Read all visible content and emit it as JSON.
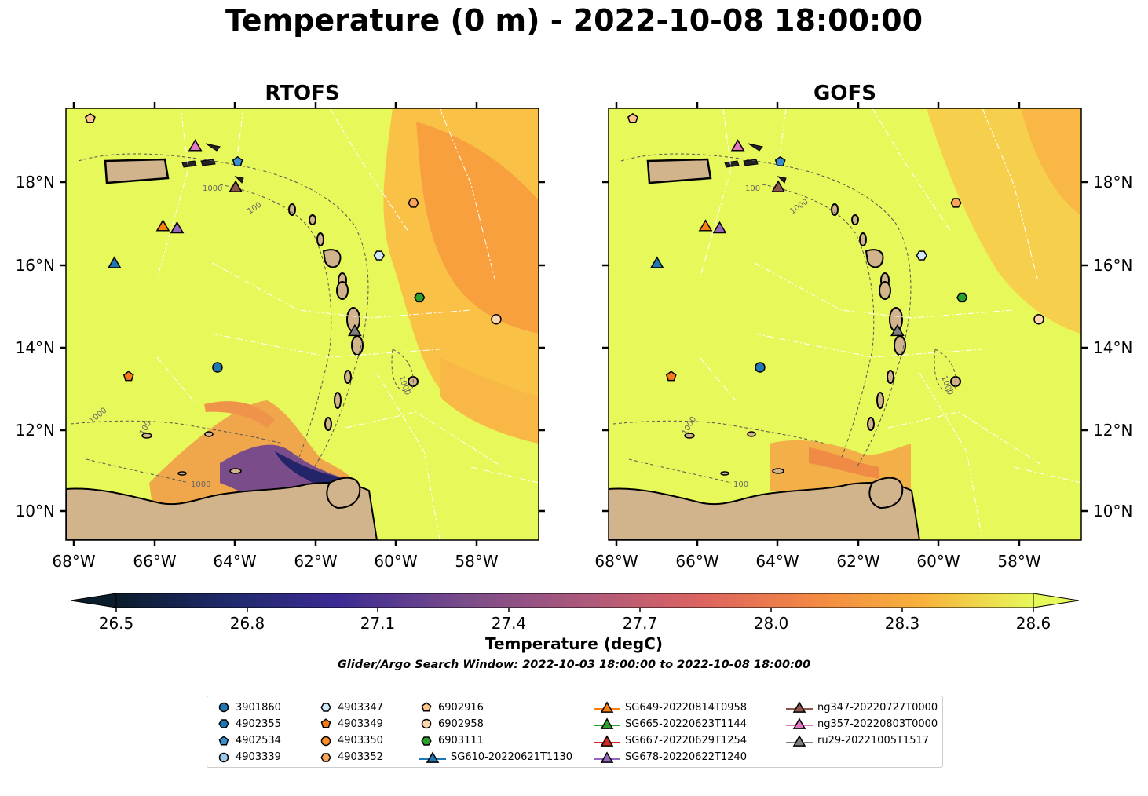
{
  "title": "Temperature (0 m) - 2022-10-08 18:00:00",
  "panels": [
    {
      "title": "RTOFS",
      "model": "rtofs"
    },
    {
      "title": "GOFS",
      "model": "gofs"
    }
  ],
  "axes": {
    "lon_ticks": [
      "68°W",
      "66°W",
      "64°W",
      "62°W",
      "60°W",
      "58°W"
    ],
    "lat_ticks": [
      "18°N",
      "16°N",
      "14°N",
      "12°N",
      "10°N"
    ],
    "lon_range": [
      -68.2,
      -56.5
    ],
    "lat_range": [
      9.3,
      19.8
    ]
  },
  "contour_labels": [
    "1000",
    "100",
    "100",
    "1000",
    "1000",
    "1000",
    "100",
    "1000",
    "1000",
    "100",
    "1000"
  ],
  "colorbar": {
    "label": "Temperature (degC)",
    "ticks": [
      "26.5",
      "26.8",
      "27.1",
      "27.4",
      "27.7",
      "28.0",
      "28.3",
      "28.6"
    ],
    "range": [
      26.5,
      28.6
    ],
    "extend": "both"
  },
  "search_window": "Glider/Argo Search Window: 2022-10-03 18:00:00 to 2022-10-08 18:00:00",
  "colors": {
    "land": "#d2b48c",
    "ocean_warm": "#e7f85a",
    "ocean_hot": "#f89a3e",
    "ocean_cold": "#23246a"
  },
  "legend": [
    {
      "label": "3901860",
      "marker": "circle",
      "color": "#1f77b4"
    },
    {
      "label": "4902355",
      "marker": "hexagon",
      "color": "#1f77b4"
    },
    {
      "label": "4902534",
      "marker": "pentagon",
      "color": "#3a8fd0"
    },
    {
      "label": "4903339",
      "marker": "circle",
      "color": "#9ec9ea"
    },
    {
      "label": "4903347",
      "marker": "hexagon",
      "color": "#cfe8fa"
    },
    {
      "label": "4903349",
      "marker": "pentagon",
      "color": "#f47b16"
    },
    {
      "label": "4903350",
      "marker": "circle",
      "color": "#ff8c2a"
    },
    {
      "label": "4903352",
      "marker": "hexagon",
      "color": "#fba45a"
    },
    {
      "label": "6902916",
      "marker": "pentagon",
      "color": "#ffc48a"
    },
    {
      "label": "6902958",
      "marker": "circle",
      "color": "#ffd6ae"
    },
    {
      "label": "6903111",
      "marker": "hexagon",
      "color": "#2ca02c"
    },
    {
      "label": "SG610-20220621T1130",
      "marker": "triangle-line",
      "color": "#1f77b4"
    },
    {
      "label": "SG649-20220814T0958",
      "marker": "triangle-line",
      "color": "#ff7f0e"
    },
    {
      "label": "SG665-20220623T1144",
      "marker": "triangle-line",
      "color": "#2ca02c"
    },
    {
      "label": "SG667-20220629T1254",
      "marker": "triangle-line",
      "color": "#d62728"
    },
    {
      "label": "SG678-20220622T1240",
      "marker": "triangle-line",
      "color": "#9467bd"
    },
    {
      "label": "ng347-20220727T0000",
      "marker": "triangle-line",
      "color": "#8c564b"
    },
    {
      "label": "ng357-20220803T0000",
      "marker": "triangle-line",
      "color": "#e377c2"
    },
    {
      "label": "ru29-20221005T1517",
      "marker": "triangle-line",
      "color": "#7f7f7f"
    }
  ],
  "platforms": [
    {
      "id": "6902916",
      "lon": -67.6,
      "lat": 19.55
    },
    {
      "id": "ng357-20220803T0000",
      "lon": -65.0,
      "lat": 18.9
    },
    {
      "id": "4902534",
      "lon": -63.95,
      "lat": 18.5
    },
    {
      "id": "ng347-20220727T0000",
      "lon": -64.0,
      "lat": 17.9
    },
    {
      "id": "4903352",
      "lon": -59.6,
      "lat": 17.5
    },
    {
      "id": "SG649-20220814T0958",
      "lon": -65.8,
      "lat": 16.95
    },
    {
      "id": "SG678-20220622T1240",
      "lon": -65.45,
      "lat": 16.9
    },
    {
      "id": "SG610-20220621T1130",
      "lon": -67.0,
      "lat": 16.05
    },
    {
      "id": "4903347",
      "lon": -60.45,
      "lat": 16.22
    },
    {
      "id": "6903111",
      "lon": -59.45,
      "lat": 15.2
    },
    {
      "id": "6902958",
      "lon": -57.55,
      "lat": 14.67
    },
    {
      "id": "ru29-20221005T1517",
      "lon": -61.05,
      "lat": 14.4
    },
    {
      "id": "3901860",
      "lon": -64.45,
      "lat": 13.5
    },
    {
      "id": "4903349",
      "lon": -66.65,
      "lat": 13.28
    }
  ]
}
